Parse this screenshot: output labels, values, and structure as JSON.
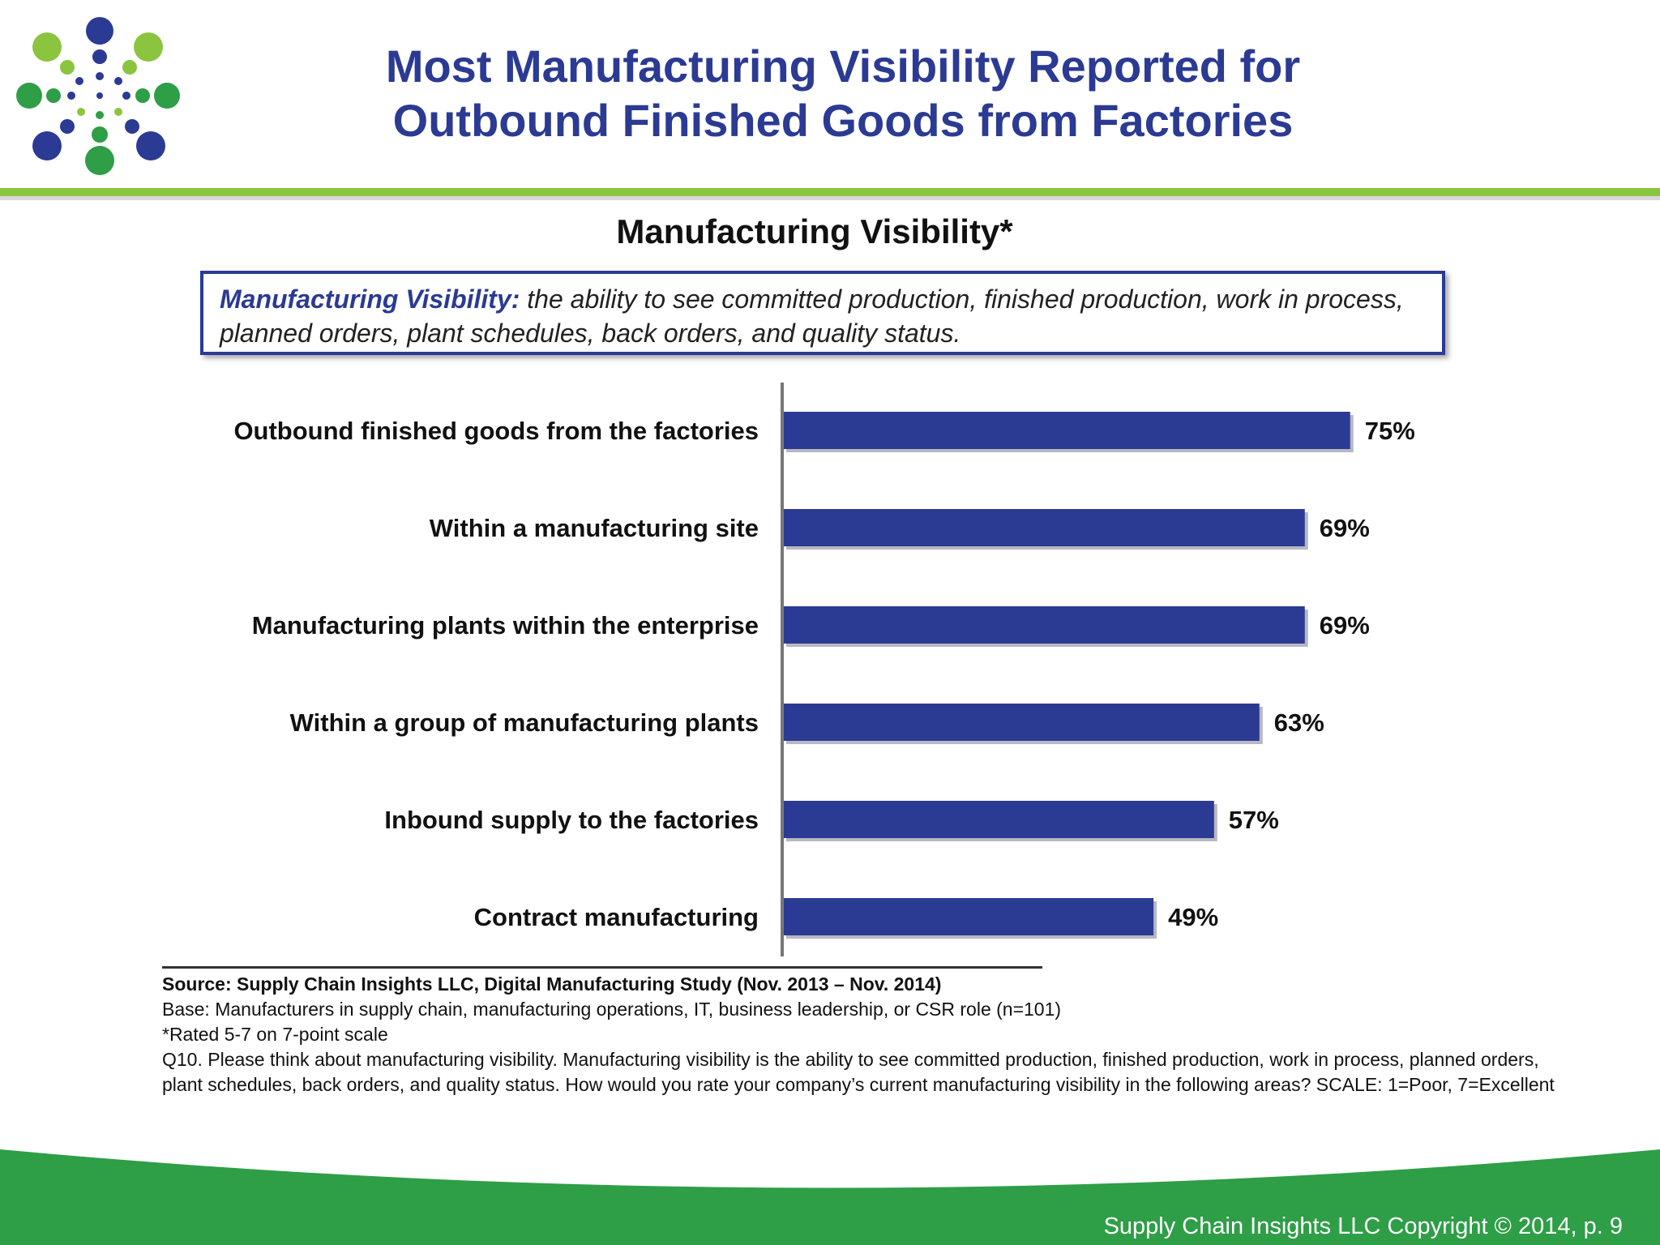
{
  "header": {
    "title_line1": "Most Manufacturing Visibility Reported for",
    "title_line2": "Outbound Finished Goods from Factories"
  },
  "definition": {
    "term": "Manufacturing  Visibility:",
    "text": " the ability to see committed production, finished production, work in process, planned orders, plant schedules, back orders, and quality status."
  },
  "chart_data": {
    "type": "bar",
    "orientation": "horizontal",
    "title": "Manufacturing Visibility*",
    "categories": [
      "Outbound finished goods from the factories",
      "Within a manufacturing site",
      "Manufacturing plants within the enterprise",
      "Within a group of manufacturing plants",
      "Inbound supply to the factories",
      "Contract manufacturing"
    ],
    "values": [
      75,
      69,
      69,
      63,
      57,
      49
    ],
    "value_labels": [
      "75%",
      "69%",
      "69%",
      "63%",
      "57%",
      "49%"
    ],
    "unit": "%",
    "xlim": [
      0,
      100
    ],
    "grid": false,
    "bar_color": "#2b3a93"
  },
  "footnotes": {
    "source": "Source:  Supply Chain Insights LLC, Digital Manufacturing Study (Nov. 2013 – Nov. 2014)",
    "base": "Base: Manufacturers in supply chain, manufacturing operations, IT, business leadership, or CSR role (n=101)",
    "scale_note": "*Rated 5-7 on 7-point scale",
    "question": "Q10. Please think about manufacturing visibility.  Manufacturing visibility is the ability to see committed production, finished production, work in process, planned orders, plant schedules, back orders, and quality status. How would you rate your company’s current manufacturing visibility in the following areas? SCALE: 1=Poor, 7=Excellent"
  },
  "footer": {
    "copyright": "Supply Chain Insights LLC Copyright © 2014, p. 9"
  },
  "colors": {
    "brand_blue": "#2b3a93",
    "brand_green": "#2e9e47",
    "accent_lime": "#8bc53f"
  },
  "logo_icon": "dotted-sunburst-logo"
}
